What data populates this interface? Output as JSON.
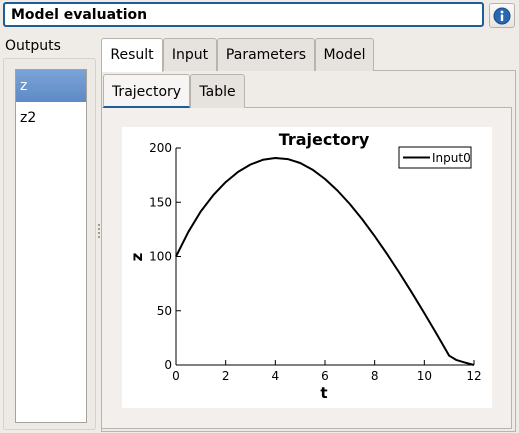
{
  "header": {
    "title": "Model evaluation",
    "info_icon": "info-icon"
  },
  "outputs": {
    "label": "Outputs",
    "items": [
      "z",
      "z2"
    ],
    "selected": "z"
  },
  "tabs": {
    "outer": [
      "Result",
      "Input",
      "Parameters",
      "Model"
    ],
    "outer_active": "Result",
    "inner": [
      "Trajectory",
      "Table"
    ],
    "inner_active": "Trajectory"
  },
  "chart_data": {
    "type": "line",
    "title": "Trajectory",
    "xlabel": "t",
    "ylabel": "z",
    "xlim": [
      0,
      12
    ],
    "ylim": [
      0,
      200
    ],
    "xticks": [
      0,
      2,
      4,
      6,
      8,
      10,
      12
    ],
    "yticks": [
      0,
      50,
      100,
      150,
      200
    ],
    "grid": false,
    "legend_position": "top-right",
    "series": [
      {
        "name": "Input0",
        "color": "#000000",
        "x": [
          0,
          0.5,
          1,
          1.5,
          2,
          2.5,
          3,
          3.5,
          4,
          4.5,
          5,
          5.5,
          6,
          6.5,
          7,
          7.5,
          8,
          8.5,
          9,
          9.5,
          10,
          10.5,
          11,
          11.3,
          11.6,
          12
        ],
        "y": [
          100,
          122.8,
          141.6,
          156.6,
          168.6,
          178.0,
          184.8,
          189.1,
          190.8,
          189.8,
          186.2,
          180.0,
          171.4,
          160.8,
          148.4,
          134.2,
          118.7,
          102.2,
          84.8,
          66.6,
          47.8,
          28.4,
          8.6,
          4.5,
          2.5,
          0
        ]
      }
    ]
  }
}
